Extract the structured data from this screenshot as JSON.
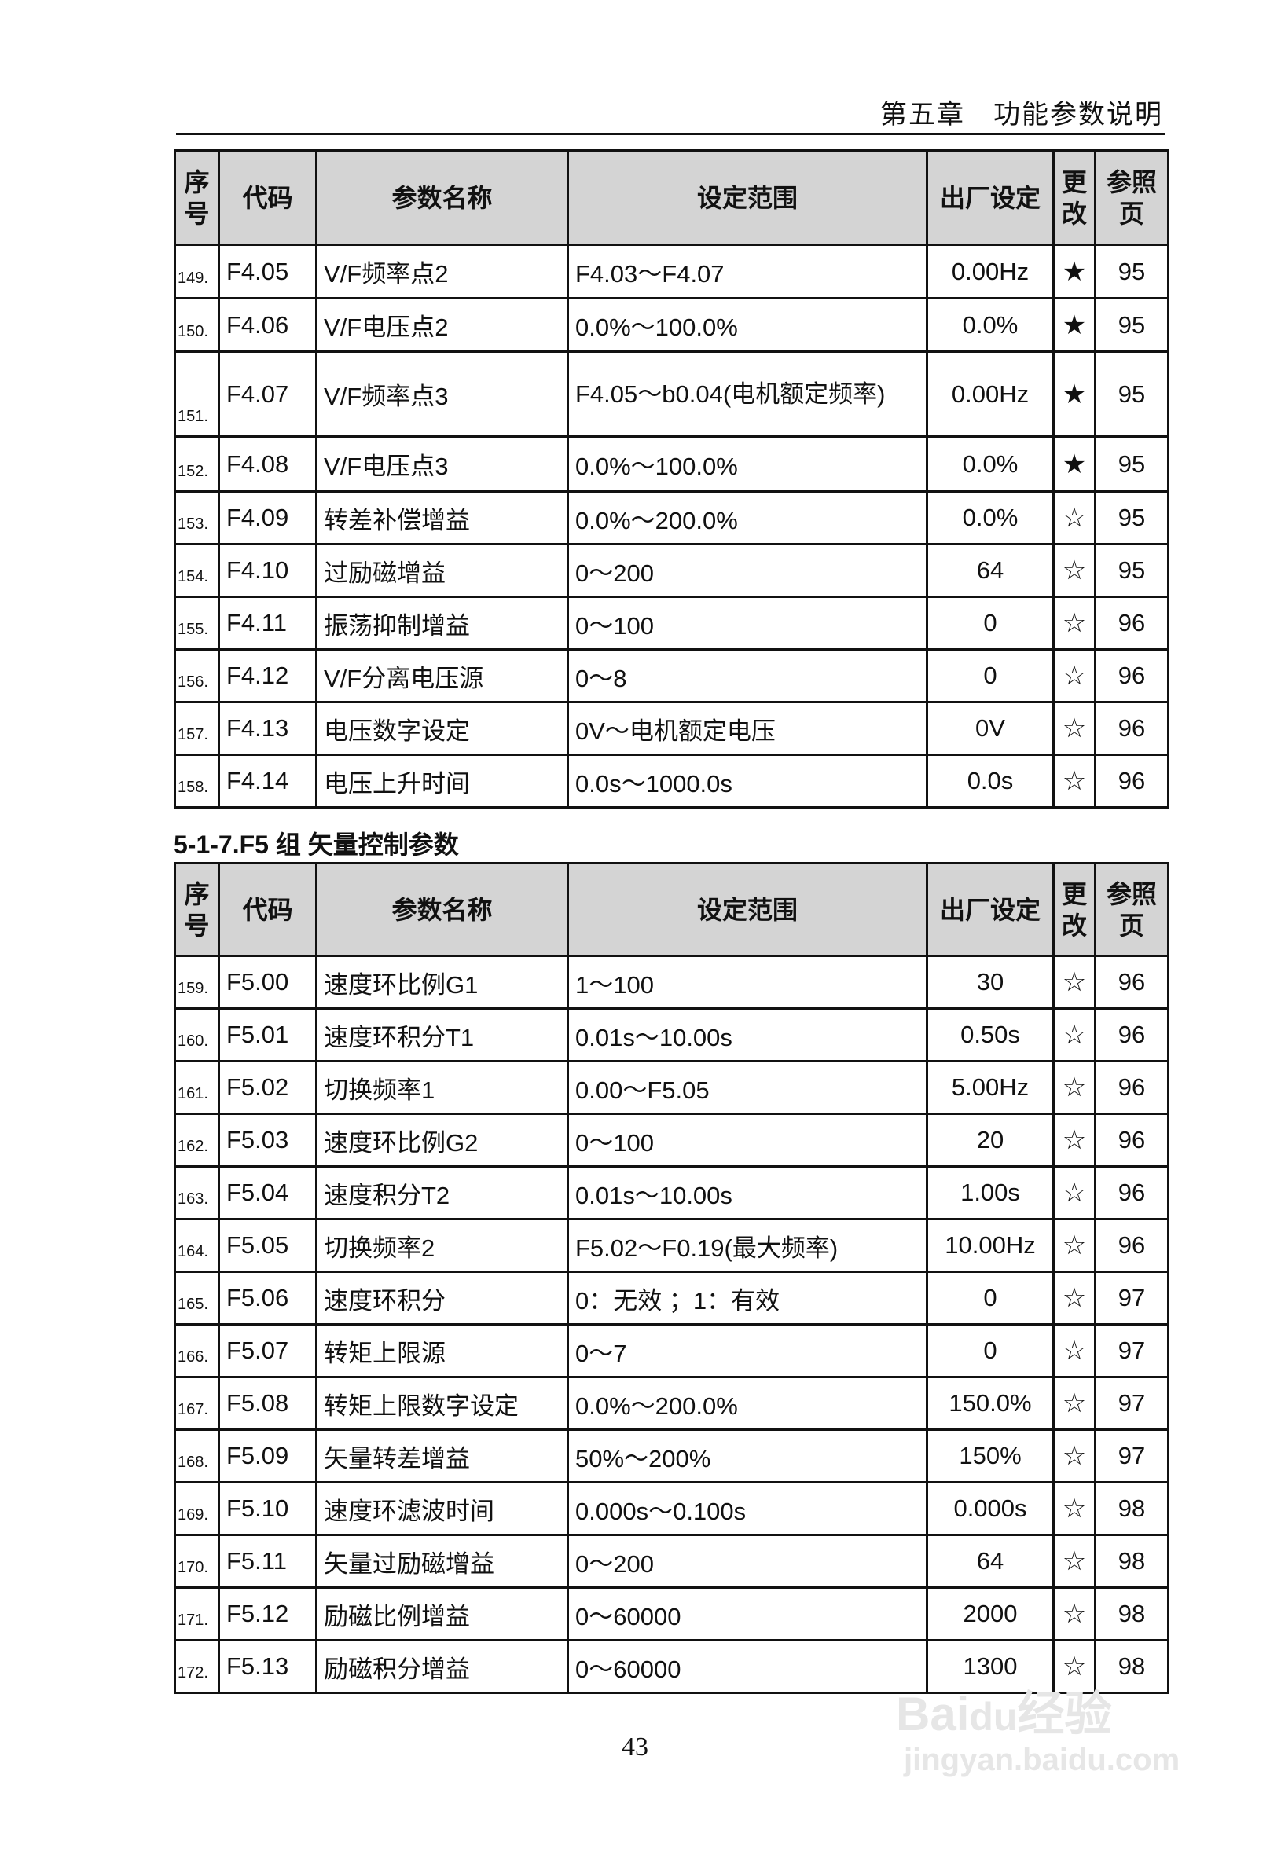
{
  "header": {
    "chapter": "第五章　功能参数说明"
  },
  "columns": [
    "序号",
    "代码",
    "参数名称",
    "设定范围",
    "出厂设定",
    "更改",
    "参照页"
  ],
  "table1": [
    {
      "no": "149.",
      "code": "F4.05",
      "name": "V/F频率点2",
      "range": "F4.03～F4.07",
      "default": "0.00Hz",
      "change": "★",
      "page": "95"
    },
    {
      "no": "150.",
      "code": "F4.06",
      "name": "V/F电压点2",
      "range": "0.0%～100.0%",
      "default": "0.0%",
      "change": "★",
      "page": "95"
    },
    {
      "no": "151.",
      "code": "F4.07",
      "name": "V/F频率点3",
      "range": "F4.05～b0.04(电机额定频率)",
      "default": "0.00Hz",
      "change": "★",
      "page": "95"
    },
    {
      "no": "152.",
      "code": "F4.08",
      "name": "V/F电压点3",
      "range": "0.0%～100.0%",
      "default": "0.0%",
      "change": "★",
      "page": "95"
    },
    {
      "no": "153.",
      "code": "F4.09",
      "name": "转差补偿增益",
      "range": "0.0%～200.0%",
      "default": "0.0%",
      "change": "☆",
      "page": "95"
    },
    {
      "no": "154.",
      "code": "F4.10",
      "name": "过励磁增益",
      "range": "0～200",
      "default": "64",
      "change": "☆",
      "page": "95"
    },
    {
      "no": "155.",
      "code": "F4.11",
      "name": "振荡抑制增益",
      "range": "0～100",
      "default": "0",
      "change": "☆",
      "page": "96"
    },
    {
      "no": "156.",
      "code": "F4.12",
      "name": "V/F分离电压源",
      "range": "0～8",
      "default": "0",
      "change": "☆",
      "page": "96"
    },
    {
      "no": "157.",
      "code": "F4.13",
      "name": "电压数字设定",
      "range": "0V～电机额定电压",
      "default": "0V",
      "change": "☆",
      "page": "96"
    },
    {
      "no": "158.",
      "code": "F4.14",
      "name": "电压上升时间",
      "range": "0.0s～1000.0s",
      "default": "0.0s",
      "change": "☆",
      "page": "96"
    }
  ],
  "section_title": "5-1-7.F5 组  矢量控制参数",
  "table2": [
    {
      "no": "159.",
      "code": "F5.00",
      "name": "速度环比例G1",
      "range": "1～100",
      "default": "30",
      "change": "☆",
      "page": "96"
    },
    {
      "no": "160.",
      "code": "F5.01",
      "name": "速度环积分T1",
      "range": "0.01s～10.00s",
      "default": "0.50s",
      "change": "☆",
      "page": "96"
    },
    {
      "no": "161.",
      "code": "F5.02",
      "name": "切换频率1",
      "range": "0.00～F5.05",
      "default": "5.00Hz",
      "change": "☆",
      "page": "96"
    },
    {
      "no": "162.",
      "code": "F5.03",
      "name": "速度环比例G2",
      "range": "0～100",
      "default": "20",
      "change": "☆",
      "page": "96"
    },
    {
      "no": "163.",
      "code": "F5.04",
      "name": "速度积分T2",
      "range": "0.01s～10.00s",
      "default": "1.00s",
      "change": "☆",
      "page": "96"
    },
    {
      "no": "164.",
      "code": "F5.05",
      "name": "切换频率2",
      "range": "F5.02～F0.19(最大频率)",
      "default": "10.00Hz",
      "change": "☆",
      "page": "96"
    },
    {
      "no": "165.",
      "code": "F5.06",
      "name": "速度环积分",
      "range": "0：无效 ；1：有效",
      "default": "0",
      "change": "☆",
      "page": "97"
    },
    {
      "no": "166.",
      "code": "F5.07",
      "name": "转矩上限源",
      "range": "0～7",
      "default": "0",
      "change": "☆",
      "page": "97"
    },
    {
      "no": "167.",
      "code": "F5.08",
      "name": "转矩上限数字设定",
      "range": "0.0%～200.0%",
      "default": "150.0%",
      "change": "☆",
      "page": "97"
    },
    {
      "no": "168.",
      "code": "F5.09",
      "name": "矢量转差增益",
      "range": "50%～200%",
      "default": "150%",
      "change": "☆",
      "page": "97"
    },
    {
      "no": "169.",
      "code": "F5.10",
      "name": "速度环滤波时间",
      "range": "0.000s～0.100s",
      "default": "0.000s",
      "change": "☆",
      "page": "98"
    },
    {
      "no": "170.",
      "code": "F5.11",
      "name": "矢量过励磁增益",
      "range": "0～200",
      "default": "64",
      "change": "☆",
      "page": "98"
    },
    {
      "no": "171.",
      "code": "F5.12",
      "name": "励磁比例增益",
      "range": "0～60000",
      "default": "2000",
      "change": "☆",
      "page": "98"
    },
    {
      "no": "172.",
      "code": "F5.13",
      "name": "励磁积分增益",
      "range": "0～60000",
      "default": "1300",
      "change": "☆",
      "page": "98"
    }
  ],
  "footer": {
    "page_number": "43"
  },
  "watermark": {
    "logo": "Baidu经验",
    "url": "jingyan.baidu.com"
  }
}
